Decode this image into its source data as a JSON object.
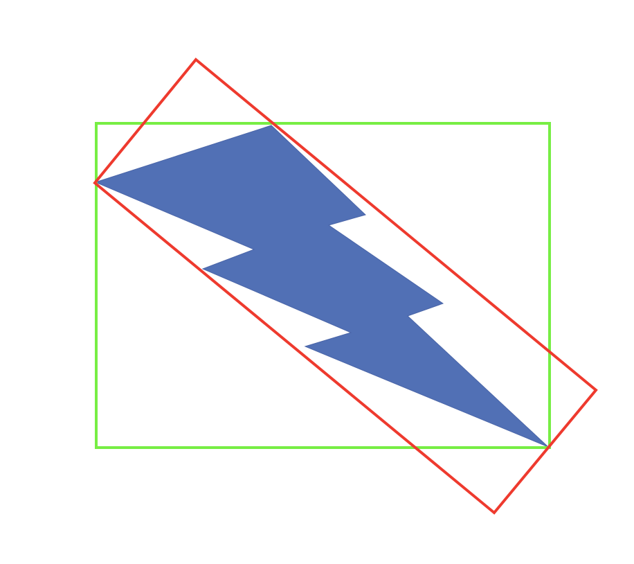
{
  "diagram": {
    "shapes": [
      {
        "kind": "lightning-bolt",
        "fill": "#5170B5"
      },
      {
        "kind": "axis-aligned-bounding-box",
        "stroke": "#77EE44"
      },
      {
        "kind": "oriented-bounding-box",
        "stroke": "#EE3A2E"
      }
    ]
  },
  "colors": {
    "background": "#FFFFFF",
    "bolt_fill": "#5170B5",
    "axis_aligned_box": "#77EE44",
    "oriented_box": "#EE3A2E"
  }
}
